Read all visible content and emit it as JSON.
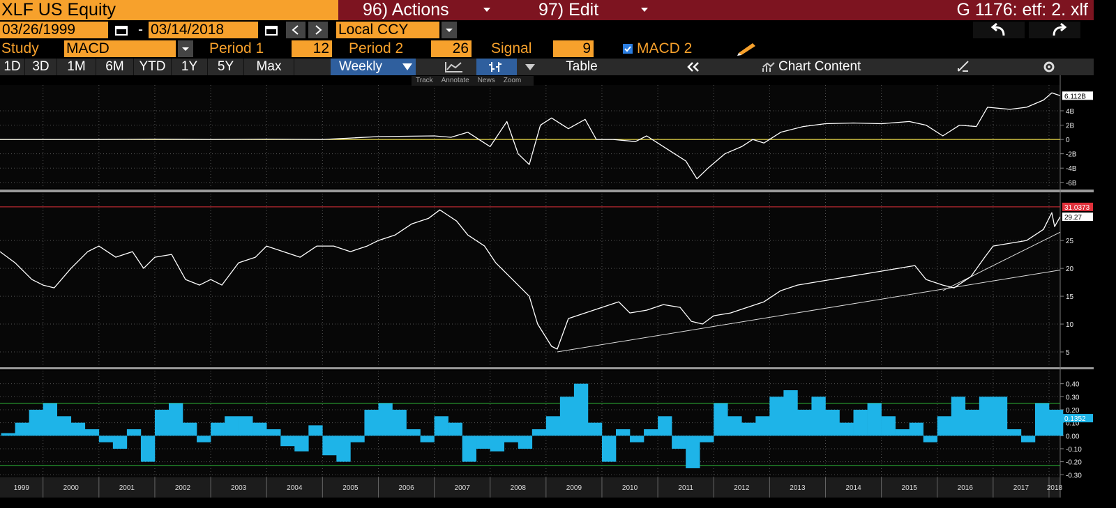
{
  "header": {
    "security": "XLF US Equity",
    "actions": "96) Actions",
    "edit": "97) Edit",
    "function": "G 1176: etf: 2. xlf"
  },
  "range": {
    "start": "03/26/1999",
    "separator": "-",
    "end": "03/14/2018",
    "currency": "Local CCY"
  },
  "study": {
    "label": "Study",
    "name": "MACD",
    "period1_label": "Period 1",
    "period1": 12,
    "period2_label": "Period 2",
    "period2": 26,
    "signal_label": "Signal",
    "signal": 9,
    "overlay": "MACD 2"
  },
  "tabs": [
    "1D",
    "3D",
    "1M",
    "6M",
    "YTD",
    "1Y",
    "5Y",
    "Max"
  ],
  "frequency": "Weekly",
  "table": "Table",
  "chart_content": "Chart Content",
  "chart_tools": [
    "Track",
    "Annotate",
    "News",
    "Zoom"
  ],
  "chart_data": [
    {
      "type": "line",
      "color": "#ffffff",
      "x": [
        1999.23,
        2000.0,
        2001.0,
        2002.0,
        2003.0,
        2004.0,
        2005.0,
        2005.5,
        2006.0,
        2007.0,
        2007.3,
        2007.6,
        2008.0,
        2008.3,
        2008.5,
        2008.7,
        2008.9,
        2009.1,
        2009.4,
        2009.7,
        2009.9,
        2010.2,
        2010.6,
        2010.8,
        2011.1,
        2011.5,
        2011.7,
        2011.9,
        2012.2,
        2012.5,
        2012.7,
        2012.9,
        2013.2,
        2013.6,
        2014.0,
        2014.5,
        2015.0,
        2015.5,
        2015.8,
        2016.1,
        2016.4,
        2016.7,
        2016.9,
        2017.3,
        2017.6,
        2017.9,
        2018.05,
        2018.2
      ],
      "values": [
        0,
        0,
        0,
        0.05,
        0,
        0.05,
        0,
        0.2,
        0.4,
        0.5,
        0.3,
        1,
        -1,
        2.5,
        -2,
        -3.5,
        2,
        3,
        1.5,
        2.8,
        0,
        0,
        -0.3,
        0.5,
        -1,
        -3,
        -5.5,
        -4,
        -2,
        -1,
        0,
        -0.5,
        1,
        1.8,
        2.2,
        2.3,
        2.2,
        2.5,
        2,
        0.5,
        2,
        1.8,
        4.5,
        4.2,
        4.5,
        5.5,
        6.5,
        6.112
      ],
      "xlim": [
        1999.23,
        2018.2
      ],
      "ylim": [
        -6.8,
        7.6
      ],
      "yticks": [
        {
          "value": -6,
          "label": "-6B"
        },
        {
          "value": -4,
          "label": "-4B"
        },
        {
          "value": -2,
          "label": "-2B"
        },
        0,
        {
          "value": 2,
          "label": "2B"
        },
        {
          "value": 4,
          "label": "4B"
        }
      ],
      "zero_line": 0,
      "zero_line_color": "#e8d84a",
      "last_value": {
        "value": 6.112,
        "label": "6.112B"
      },
      "grid": true
    },
    {
      "type": "line",
      "color": "#ffffff",
      "x": [
        1999.23,
        1999.5,
        1999.8,
        2000.0,
        2000.2,
        2000.5,
        2000.8,
        2001.0,
        2001.3,
        2001.6,
        2001.8,
        2002.0,
        2002.3,
        2002.55,
        2002.8,
        2003.0,
        2003.2,
        2003.5,
        2003.8,
        2004.0,
        2004.3,
        2004.6,
        2004.9,
        2005.2,
        2005.5,
        2005.8,
        2006.0,
        2006.3,
        2006.6,
        2006.9,
        2007.1,
        2007.4,
        2007.6,
        2007.9,
        2008.1,
        2008.4,
        2008.7,
        2008.85,
        2009.1,
        2009.2,
        2009.4,
        2009.7,
        2010.0,
        2010.3,
        2010.5,
        2010.8,
        2011.1,
        2011.4,
        2011.6,
        2011.8,
        2012.0,
        2012.3,
        2012.6,
        2012.9,
        2013.2,
        2013.5,
        2013.8,
        2014.1,
        2014.4,
        2014.7,
        2015.0,
        2015.3,
        2015.6,
        2015.8,
        2016.1,
        2016.3,
        2016.6,
        2016.85,
        2017.0,
        2017.3,
        2017.6,
        2017.9,
        2018.05,
        2018.1,
        2018.2
      ],
      "values": [
        23,
        21,
        18,
        17,
        16.5,
        20,
        23,
        24,
        22,
        23,
        20,
        22,
        22.5,
        18,
        17,
        18,
        17,
        21,
        22,
        24,
        23,
        22,
        24,
        24,
        23,
        24,
        25,
        26,
        28,
        29,
        30.5,
        28.5,
        26,
        24,
        21,
        18,
        15,
        10,
        6,
        5.5,
        11,
        12,
        13,
        14,
        12,
        12.5,
        13.5,
        13,
        10.5,
        10,
        11.5,
        12,
        13,
        14,
        16,
        17,
        17.5,
        18,
        18.5,
        19,
        19.5,
        20,
        20.5,
        18,
        17,
        16.5,
        18.5,
        22,
        24,
        24.5,
        25,
        27,
        30,
        27.5,
        29.27
      ],
      "xlim": [
        1999.23,
        2018.2
      ],
      "ylim": [
        2.5,
        33.4
      ],
      "yticks": [
        5,
        10,
        15,
        20,
        25
      ],
      "high_line": 31.0373,
      "high_line_color": "#e0303a",
      "last_value": 29.27,
      "trendlines": [
        {
          "x": [
            2009.2,
            2018.2
          ],
          "y": [
            5,
            19.7
          ]
        },
        {
          "x": [
            2016.1,
            2018.2
          ],
          "y": [
            16,
            26.5
          ]
        }
      ],
      "grid": true
    },
    {
      "type": "bar",
      "color": "#1eb4e8",
      "x": [
        1999.25,
        1999.5,
        1999.75,
        2000.0,
        2000.25,
        2000.5,
        2000.75,
        2001.0,
        2001.25,
        2001.5,
        2001.75,
        2002.0,
        2002.25,
        2002.5,
        2002.75,
        2003.0,
        2003.25,
        2003.5,
        2003.75,
        2004.0,
        2004.25,
        2004.5,
        2004.75,
        2005.0,
        2005.25,
        2005.5,
        2005.75,
        2006.0,
        2006.25,
        2006.5,
        2006.75,
        2007.0,
        2007.25,
        2007.5,
        2007.75,
        2008.0,
        2008.25,
        2008.5,
        2008.75,
        2009.0,
        2009.25,
        2009.5,
        2009.75,
        2010.0,
        2010.25,
        2010.5,
        2010.75,
        2011.0,
        2011.25,
        2011.5,
        2011.75,
        2012.0,
        2012.25,
        2012.5,
        2012.75,
        2013.0,
        2013.25,
        2013.5,
        2013.75,
        2014.0,
        2014.25,
        2014.5,
        2014.75,
        2015.0,
        2015.25,
        2015.5,
        2015.75,
        2016.0,
        2016.25,
        2016.5,
        2016.75,
        2017.0,
        2017.25,
        2017.5,
        2017.75,
        2018.0
      ],
      "values": [
        0.02,
        0.1,
        0.2,
        0.25,
        0.15,
        0.1,
        0.05,
        -0.05,
        -0.1,
        0.05,
        -0.2,
        0.2,
        0.25,
        0.1,
        -0.05,
        0.1,
        0.15,
        0.15,
        0.1,
        0.05,
        -0.08,
        -0.12,
        0.08,
        -0.15,
        -0.2,
        -0.05,
        0.2,
        0.25,
        0.2,
        0.05,
        -0.05,
        0.15,
        0.1,
        -0.2,
        -0.1,
        -0.12,
        -0.05,
        -0.1,
        0.05,
        0.15,
        0.3,
        0.4,
        0.1,
        -0.2,
        0.05,
        -0.05,
        0.05,
        0.15,
        -0.1,
        -0.25,
        -0.05,
        0.25,
        0.15,
        0.1,
        0.15,
        0.3,
        0.35,
        0.2,
        0.3,
        0.2,
        0.1,
        0.2,
        0.25,
        0.15,
        0.05,
        0.1,
        -0.05,
        0.15,
        0.3,
        0.2,
        0.3,
        0.3,
        0.05,
        -0.05,
        0.25,
        0.2
      ],
      "xlim": [
        1999.23,
        2018.2
      ],
      "ylim": [
        -0.32,
        0.5
      ],
      "yticks": [
        {
          "value": -0.3,
          "label": "-0.30"
        },
        {
          "value": -0.2,
          "label": "-0.20"
        },
        {
          "value": -0.1,
          "label": "-0.10"
        },
        {
          "value": 0,
          "label": "0.00"
        },
        {
          "value": 0.1,
          "label": "0.10"
        },
        {
          "value": 0.2,
          "label": "0.20"
        },
        {
          "value": 0.3,
          "label": "0.30"
        },
        {
          "value": 0.4,
          "label": "0.40"
        }
      ],
      "bands": [
        0.25,
        -0.23
      ],
      "band_color": "#2fbf3a",
      "last_value": 0.1352,
      "xticks": [
        1999,
        2000,
        2001,
        2002,
        2003,
        2004,
        2005,
        2006,
        2007,
        2008,
        2009,
        2010,
        2011,
        2012,
        2013,
        2014,
        2015,
        2016,
        2017,
        2018
      ],
      "grid": true
    }
  ]
}
